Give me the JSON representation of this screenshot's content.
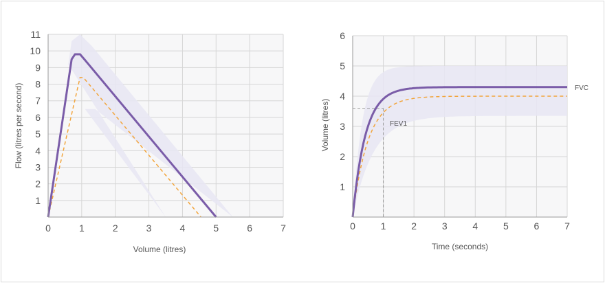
{
  "colors": {
    "measured": "#7a5ca8",
    "predicted": "#f2a53c",
    "band": "#e7e6f3",
    "grid": "#d6d6d6",
    "plot_bg": "#f7f7f8"
  },
  "chart_data": [
    {
      "type": "line",
      "xlabel": "Volume (litres)",
      "ylabel": "Flow (litres per second)",
      "xlim": [
        0,
        7
      ],
      "ylim": [
        0,
        11
      ],
      "xticks": [
        "0",
        "1",
        "2",
        "3",
        "4",
        "5",
        "6",
        "7"
      ],
      "yticks": [
        "1",
        "2",
        "3",
        "4",
        "5",
        "6",
        "7",
        "8",
        "9",
        "10",
        "11"
      ],
      "grid": true,
      "series": [
        {
          "style": "solid",
          "points": [
            [
              0,
              0
            ],
            [
              0.7,
              9.5
            ],
            [
              0.8,
              9.8
            ],
            [
              0.95,
              9.8
            ],
            [
              1.1,
              9.45
            ],
            [
              5,
              0
            ]
          ]
        },
        {
          "style": "dashed",
          "points": [
            [
              0,
              0
            ],
            [
              0.95,
              8.4
            ],
            [
              1.05,
              8.4
            ],
            [
              4.55,
              0
            ]
          ]
        }
      ],
      "band": {
        "upper": [
          [
            0.6,
            9.2
          ],
          [
            0.7,
            10.6
          ],
          [
            0.95,
            11
          ],
          [
            1.3,
            10.3
          ],
          [
            5.5,
            0
          ]
        ],
        "lower": [
          [
            1.4,
            6.5
          ],
          [
            1.1,
            6.5
          ],
          [
            3.5,
            0
          ]
        ]
      }
    },
    {
      "type": "line",
      "xlabel": "Time (seconds)",
      "ylabel": "Volume (litres)",
      "xlim": [
        0,
        7
      ],
      "ylim": [
        0,
        6
      ],
      "xticks": [
        "0",
        "1",
        "2",
        "3",
        "4",
        "5",
        "6",
        "7"
      ],
      "yticks": [
        "1",
        "2",
        "3",
        "4",
        "5",
        "6"
      ],
      "grid": true,
      "annotations": {
        "fvc": "FVC",
        "fev1": "FEV1"
      },
      "fev1_marker": {
        "x": 1,
        "y": 3.6
      },
      "series": [
        {
          "name": "FVC",
          "style": "solid",
          "asymptote": 4.3,
          "rate": 2.4
        },
        {
          "style": "dashed",
          "asymptote": 4.0,
          "rate": 2.0
        }
      ],
      "band": {
        "upper_asymptote": 5.0,
        "upper_rate": 3.2,
        "lower_asymptote": 3.35,
        "lower_rate": 1.5
      }
    }
  ]
}
